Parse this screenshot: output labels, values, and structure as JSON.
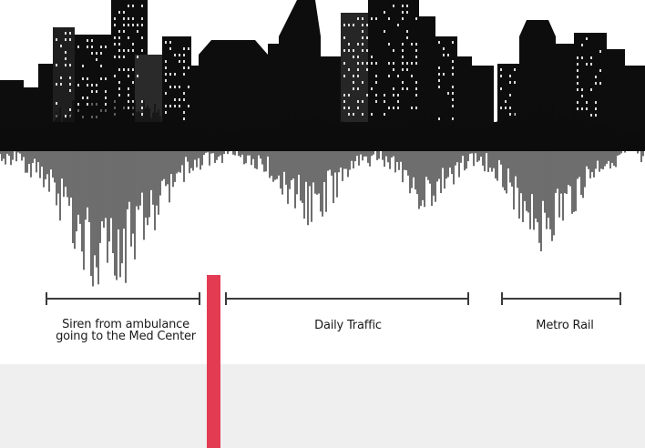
{
  "labels": {
    "siren_line1": "Siren from ambulance",
    "siren_line2": "going to the Med Center",
    "traffic": "Daily Traffic",
    "metro": "Metro Rail"
  },
  "colors": {
    "ink": "#0d0d0d",
    "playhead": "#e33b52",
    "band": "#efefef"
  }
}
